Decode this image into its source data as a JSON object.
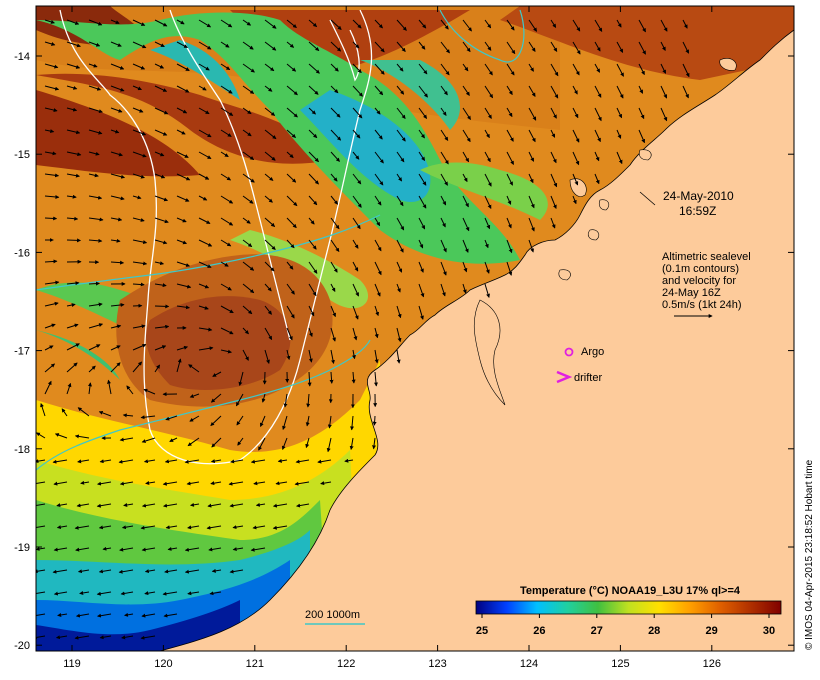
{
  "map": {
    "x_ticks": [
      "119",
      "120",
      "121",
      "122",
      "123",
      "124",
      "125",
      "126"
    ],
    "y_ticks": [
      "-14",
      "-15",
      "-16",
      "-17",
      "-18",
      "-19",
      "-20"
    ],
    "colors": {
      "land": "#fdcb9b",
      "contour_200_1000": "#3fc8c8",
      "sealevel_contour": "#ffffff",
      "argo": "#e020e0",
      "drifter": "#e020e0"
    }
  },
  "annotations": {
    "date": "24-May-2010",
    "time": "16:59Z",
    "altimetry_lines": [
      "Altimetric sealevel",
      "(0.1m contours)",
      "and velocity for",
      "24-May 16Z",
      "0.5m/s (1kt 24h)"
    ],
    "argo_label": "Argo",
    "drifter_label": "drifter",
    "bathymetry_label": "200  1000m"
  },
  "colorbar": {
    "title": "Temperature (°C) NOAA19_L3U 17% ql>=4",
    "ticks": [
      "25",
      "26",
      "27",
      "28",
      "29",
      "30"
    ],
    "colors": [
      "#000080",
      "#0040ff",
      "#00c0ff",
      "#20d0a0",
      "#40c040",
      "#c0e020",
      "#ffe000",
      "#ffa000",
      "#e06000",
      "#b03000",
      "#800000"
    ]
  },
  "credit": "© IMOS 04-Apr-2015 23:18:52 Hobart time"
}
